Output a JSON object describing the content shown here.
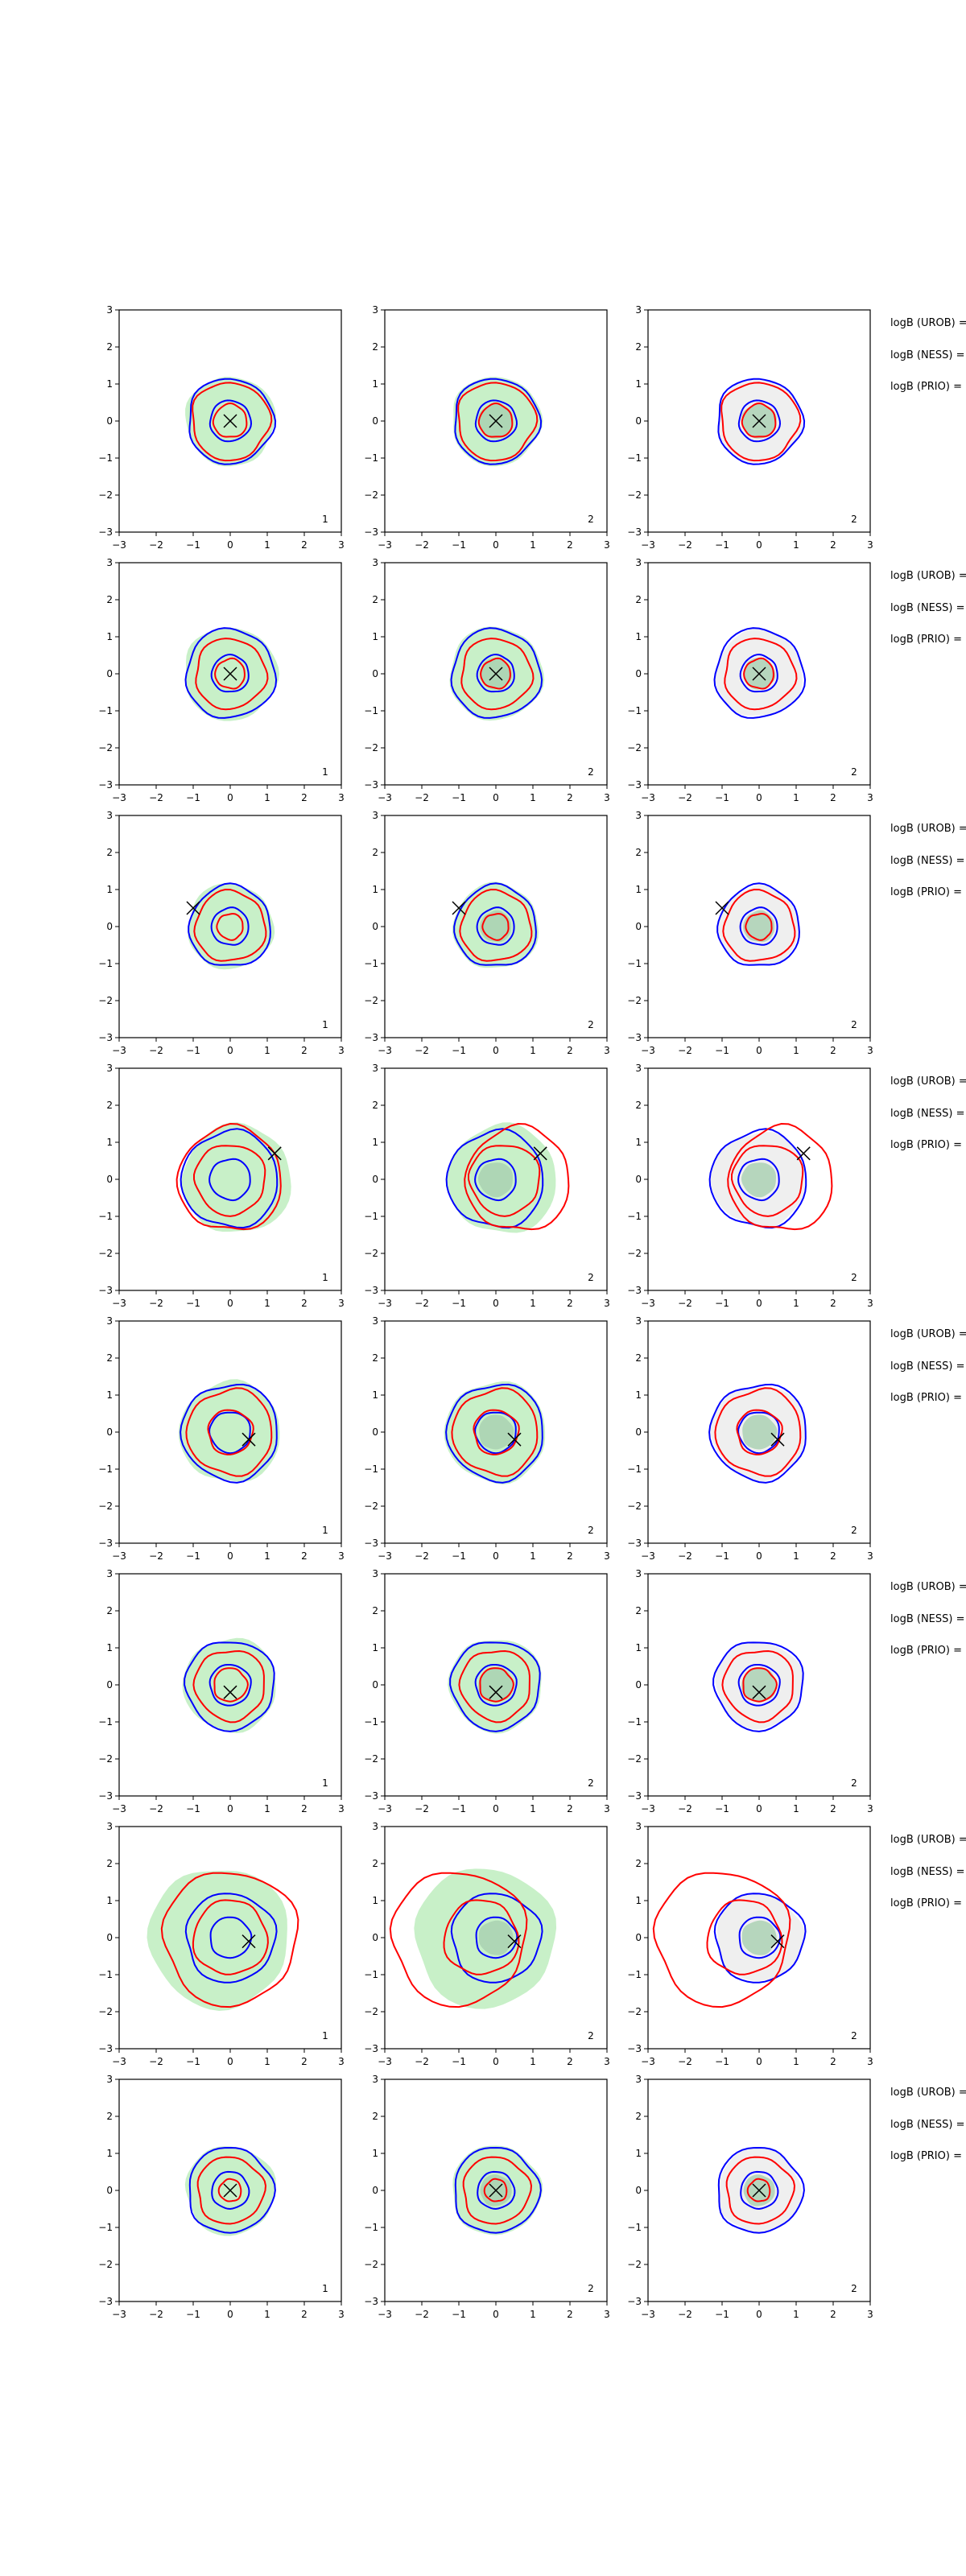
{
  "colors": {
    "uncertainty_fill": "#c8f0c8",
    "comparison_fill": "#efefef",
    "inner_fill_dark": "#a8d0b0",
    "contour_blue": "#0000ff",
    "contour_red": "#ff0000",
    "marker": "#000000",
    "axes": "#000000"
  },
  "axis_ticks": [
    "−3",
    "−2",
    "−1",
    "0",
    "1",
    "2",
    "3"
  ],
  "stat_labels": [
    "logB (UROB) =",
    "logB (NESS) =",
    "logB (PRIO) ="
  ],
  "chart_data": {
    "type": "contour",
    "grid": false,
    "xlim": [
      -3,
      3
    ],
    "ylim": [
      -3,
      3
    ],
    "xticks": [
      -3,
      -2,
      -1,
      0,
      1,
      2,
      3
    ],
    "yticks": [
      -3,
      -2,
      -1,
      0,
      1,
      2,
      3
    ],
    "column_labels": [
      "1",
      "2",
      "2"
    ],
    "rows": [
      {
        "marker": [
          0.0,
          0.0
        ],
        "blue_outer_r": 1.15,
        "blue_inner_r": 0.55,
        "red_outer_r": 1.05,
        "red_inner_r": 0.45,
        "shift": [
          0,
          0
        ]
      },
      {
        "marker": [
          0.0,
          0.0
        ],
        "blue_outer_r": 1.2,
        "blue_inner_r": 0.5,
        "red_outer_r": 0.95,
        "red_inner_r": 0.4,
        "shift": [
          0,
          0
        ]
      },
      {
        "marker": [
          -1.0,
          0.5
        ],
        "blue_outer_r": 1.1,
        "blue_inner_r": 0.5,
        "red_outer_r": 0.95,
        "red_inner_r": 0.35,
        "shift": [
          0,
          0
        ]
      },
      {
        "marker": [
          1.2,
          0.7
        ],
        "blue_outer_r": 1.3,
        "blue_inner_r": 0.55,
        "red_outer_r": 1.4,
        "red_inner_r": 0.95,
        "shift": [
          0.6,
          0
        ]
      },
      {
        "marker": [
          0.5,
          -0.2
        ],
        "blue_outer_r": 1.3,
        "blue_inner_r": 0.55,
        "red_outer_r": 1.15,
        "red_inner_r": 0.6,
        "shift": [
          0,
          0
        ]
      },
      {
        "marker": [
          0.0,
          -0.2
        ],
        "blue_outer_r": 1.2,
        "blue_inner_r": 0.55,
        "red_outer_r": 0.95,
        "red_inner_r": 0.45,
        "shift": [
          0,
          0
        ]
      },
      {
        "marker": [
          0.5,
          -0.1
        ],
        "blue_outer_r": 1.2,
        "blue_inner_r": 0.55,
        "red_outer_r": 1.8,
        "red_inner_r": 1.0,
        "shift": [
          -1.0,
          0
        ]
      },
      {
        "marker": [
          0.0,
          0.0
        ],
        "blue_outer_r": 1.15,
        "blue_inner_r": 0.5,
        "red_outer_r": 0.9,
        "red_inner_r": 0.3,
        "shift": [
          0,
          0
        ]
      }
    ]
  }
}
